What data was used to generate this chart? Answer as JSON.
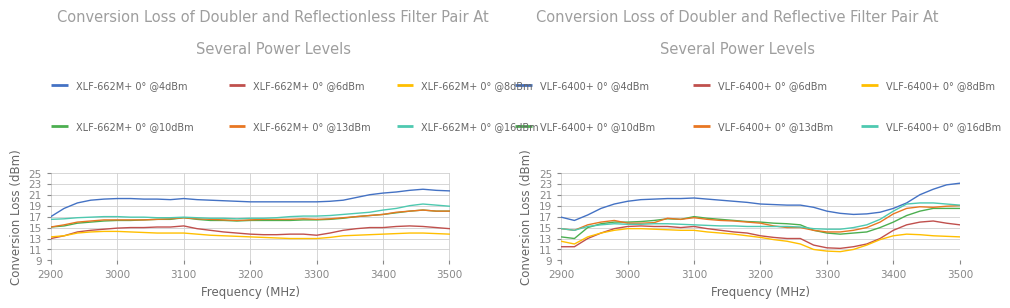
{
  "chart1": {
    "title_line1": "Conversion Loss of Doubler and Reflectionless Filter Pair At",
    "title_line2": "Several Power Levels",
    "xlabel": "Frequency (MHz)",
    "ylabel": "Conversion Loss (dBm)",
    "xlim": [
      2900,
      3500
    ],
    "ylim": [
      9,
      25
    ],
    "yticks": [
      9,
      11,
      13,
      15,
      17,
      19,
      21,
      23,
      25
    ],
    "xticks": [
      2900,
      3000,
      3100,
      3200,
      3300,
      3400,
      3500
    ],
    "series": [
      {
        "label": "XLF-662M+ 0° @4dBm",
        "color": "#4472C4",
        "x": [
          2900,
          2920,
          2940,
          2960,
          2980,
          3000,
          3020,
          3040,
          3060,
          3080,
          3100,
          3120,
          3140,
          3160,
          3180,
          3200,
          3220,
          3240,
          3260,
          3280,
          3300,
          3320,
          3340,
          3360,
          3380,
          3400,
          3420,
          3440,
          3460,
          3480,
          3500
        ],
        "y": [
          17.0,
          18.5,
          19.5,
          20.0,
          20.2,
          20.3,
          20.3,
          20.2,
          20.2,
          20.1,
          20.3,
          20.1,
          20.0,
          19.9,
          19.8,
          19.7,
          19.7,
          19.7,
          19.7,
          19.7,
          19.7,
          19.8,
          20.0,
          20.5,
          21.0,
          21.3,
          21.5,
          21.8,
          22.0,
          21.8,
          21.7
        ]
      },
      {
        "label": "XLF-662M+ 0° @6dBm",
        "color": "#C0504D",
        "x": [
          2900,
          2920,
          2940,
          2960,
          2980,
          3000,
          3020,
          3040,
          3060,
          3080,
          3100,
          3120,
          3140,
          3160,
          3180,
          3200,
          3220,
          3240,
          3260,
          3280,
          3300,
          3320,
          3340,
          3360,
          3380,
          3400,
          3420,
          3440,
          3460,
          3480,
          3500
        ],
        "y": [
          13.0,
          13.5,
          14.2,
          14.5,
          14.7,
          14.9,
          15.0,
          15.0,
          15.1,
          15.1,
          15.3,
          14.8,
          14.5,
          14.2,
          14.0,
          13.8,
          13.7,
          13.7,
          13.8,
          13.8,
          13.6,
          14.0,
          14.5,
          14.8,
          15.0,
          15.0,
          15.2,
          15.3,
          15.2,
          15.0,
          14.8
        ]
      },
      {
        "label": "XLF-662M+ 0° @8dBm",
        "color": "#FFBF00",
        "x": [
          2900,
          2920,
          2940,
          2960,
          2980,
          3000,
          3020,
          3040,
          3060,
          3080,
          3100,
          3120,
          3140,
          3160,
          3180,
          3200,
          3220,
          3240,
          3260,
          3280,
          3300,
          3320,
          3340,
          3360,
          3380,
          3400,
          3420,
          3440,
          3460,
          3480,
          3500
        ],
        "y": [
          13.3,
          13.5,
          14.0,
          14.2,
          14.3,
          14.3,
          14.2,
          14.1,
          14.0,
          14.0,
          14.0,
          13.8,
          13.6,
          13.5,
          13.4,
          13.3,
          13.2,
          13.1,
          13.0,
          13.0,
          13.0,
          13.2,
          13.5,
          13.6,
          13.7,
          13.8,
          13.9,
          14.0,
          14.0,
          13.9,
          13.8
        ]
      },
      {
        "label": "XLF-662M+ 0° @10dBm",
        "color": "#4CAF50",
        "x": [
          2900,
          2920,
          2940,
          2960,
          2980,
          3000,
          3020,
          3040,
          3060,
          3080,
          3100,
          3120,
          3140,
          3160,
          3180,
          3200,
          3220,
          3240,
          3260,
          3280,
          3300,
          3320,
          3340,
          3360,
          3380,
          3400,
          3420,
          3440,
          3460,
          3480,
          3500
        ],
        "y": [
          15.1,
          15.3,
          15.8,
          16.0,
          16.2,
          16.3,
          16.3,
          16.4,
          16.5,
          16.5,
          16.8,
          16.5,
          16.3,
          16.3,
          16.2,
          16.3,
          16.3,
          16.3,
          16.3,
          16.4,
          16.4,
          16.5,
          16.7,
          17.0,
          17.2,
          17.4,
          17.7,
          18.0,
          18.2,
          18.0,
          18.0
        ]
      },
      {
        "label": "XLF-662M+ 0° @13dBm",
        "color": "#E87722",
        "x": [
          2900,
          2920,
          2940,
          2960,
          2980,
          3000,
          3020,
          3040,
          3060,
          3080,
          3100,
          3120,
          3140,
          3160,
          3180,
          3200,
          3220,
          3240,
          3260,
          3280,
          3300,
          3320,
          3340,
          3360,
          3380,
          3400,
          3420,
          3440,
          3460,
          3480,
          3500
        ],
        "y": [
          15.1,
          15.5,
          16.0,
          16.2,
          16.4,
          16.4,
          16.4,
          16.4,
          16.5,
          16.6,
          16.8,
          16.6,
          16.5,
          16.4,
          16.3,
          16.4,
          16.5,
          16.5,
          16.5,
          16.6,
          16.5,
          16.6,
          16.8,
          17.0,
          17.2,
          17.4,
          17.8,
          18.0,
          18.2,
          18.0,
          18.0
        ]
      },
      {
        "label": "XLF-662M+ 0° @16dBm",
        "color": "#4EC9B0",
        "x": [
          2900,
          2920,
          2940,
          2960,
          2980,
          3000,
          3020,
          3040,
          3060,
          3080,
          3100,
          3120,
          3140,
          3160,
          3180,
          3200,
          3220,
          3240,
          3260,
          3280,
          3300,
          3320,
          3340,
          3360,
          3380,
          3400,
          3420,
          3440,
          3460,
          3480,
          3500
        ],
        "y": [
          16.5,
          16.6,
          16.8,
          16.9,
          17.0,
          17.0,
          16.9,
          16.9,
          16.8,
          16.8,
          16.9,
          16.8,
          16.7,
          16.7,
          16.6,
          16.7,
          16.7,
          16.8,
          17.0,
          17.1,
          17.1,
          17.2,
          17.4,
          17.6,
          17.8,
          18.2,
          18.5,
          19.0,
          19.3,
          19.1,
          18.9
        ]
      }
    ]
  },
  "chart2": {
    "title_line1": "Conversion Loss of Doubler and Reflective Filter Pair At",
    "title_line2": "Several Power Levels",
    "xlabel": "Frequency (MHz)",
    "ylabel": "Conversion Loss (dBm)",
    "xlim": [
      2900,
      3500
    ],
    "ylim": [
      9,
      25
    ],
    "yticks": [
      9,
      11,
      13,
      15,
      17,
      19,
      21,
      23,
      25
    ],
    "xticks": [
      2900,
      3000,
      3100,
      3200,
      3300,
      3400,
      3500
    ],
    "series": [
      {
        "label": "VLF-6400+ 0° @4dBm",
        "color": "#4472C4",
        "x": [
          2900,
          2920,
          2940,
          2960,
          2980,
          3000,
          3020,
          3040,
          3060,
          3080,
          3100,
          3120,
          3140,
          3160,
          3180,
          3200,
          3220,
          3240,
          3260,
          3280,
          3300,
          3320,
          3340,
          3360,
          3380,
          3400,
          3420,
          3440,
          3460,
          3480,
          3500
        ],
        "y": [
          16.9,
          16.3,
          17.3,
          18.5,
          19.3,
          19.8,
          20.1,
          20.2,
          20.3,
          20.3,
          20.4,
          20.2,
          20.0,
          19.8,
          19.6,
          19.3,
          19.2,
          19.1,
          19.1,
          18.7,
          18.0,
          17.6,
          17.4,
          17.5,
          17.8,
          18.5,
          19.5,
          21.0,
          22.0,
          22.8,
          23.1
        ]
      },
      {
        "label": "VLF-6400+ 0° @6dBm",
        "color": "#C0504D",
        "x": [
          2900,
          2920,
          2940,
          2960,
          2980,
          3000,
          3020,
          3040,
          3060,
          3080,
          3100,
          3120,
          3140,
          3160,
          3180,
          3200,
          3220,
          3240,
          3260,
          3280,
          3300,
          3320,
          3340,
          3360,
          3380,
          3400,
          3420,
          3440,
          3460,
          3480,
          3500
        ],
        "y": [
          11.5,
          11.5,
          13.0,
          14.0,
          14.8,
          15.2,
          15.3,
          15.2,
          15.2,
          15.0,
          15.2,
          14.8,
          14.5,
          14.2,
          14.0,
          13.5,
          13.2,
          13.0,
          13.0,
          11.8,
          11.3,
          11.2,
          11.5,
          12.0,
          13.0,
          14.5,
          15.5,
          16.0,
          16.2,
          15.8,
          15.5
        ]
      },
      {
        "label": "VLF-6400+ 0° @8dBm",
        "color": "#FFBF00",
        "x": [
          2900,
          2920,
          2940,
          2960,
          2980,
          3000,
          3020,
          3040,
          3060,
          3080,
          3100,
          3120,
          3140,
          3160,
          3180,
          3200,
          3220,
          3240,
          3260,
          3280,
          3300,
          3320,
          3340,
          3360,
          3380,
          3400,
          3420,
          3440,
          3460,
          3480,
          3500
        ],
        "y": [
          12.5,
          12.0,
          13.3,
          14.0,
          14.5,
          14.8,
          14.8,
          14.7,
          14.6,
          14.5,
          14.5,
          14.2,
          14.0,
          13.8,
          13.5,
          13.2,
          12.8,
          12.5,
          12.0,
          11.0,
          10.7,
          10.6,
          11.0,
          11.8,
          12.8,
          13.5,
          13.8,
          13.7,
          13.5,
          13.4,
          13.3
        ]
      },
      {
        "label": "VLF-6400+ 0° @10dBm",
        "color": "#4CAF50",
        "x": [
          2900,
          2920,
          2940,
          2960,
          2980,
          3000,
          3020,
          3040,
          3060,
          3080,
          3100,
          3120,
          3140,
          3160,
          3180,
          3200,
          3220,
          3240,
          3260,
          3280,
          3300,
          3320,
          3340,
          3360,
          3380,
          3400,
          3420,
          3440,
          3460,
          3480,
          3500
        ],
        "y": [
          13.3,
          13.0,
          15.0,
          15.7,
          16.0,
          16.0,
          16.1,
          16.3,
          16.6,
          16.5,
          17.0,
          16.7,
          16.5,
          16.3,
          16.1,
          16.0,
          15.8,
          15.7,
          15.5,
          14.5,
          14.0,
          13.8,
          14.0,
          14.2,
          15.0,
          16.0,
          17.2,
          18.0,
          18.5,
          18.5,
          18.5
        ]
      },
      {
        "label": "VLF-6400+ 0° @13dBm",
        "color": "#E87722",
        "x": [
          2900,
          2920,
          2940,
          2960,
          2980,
          3000,
          3020,
          3040,
          3060,
          3080,
          3100,
          3120,
          3140,
          3160,
          3180,
          3200,
          3220,
          3240,
          3260,
          3280,
          3300,
          3320,
          3340,
          3360,
          3380,
          3400,
          3420,
          3440,
          3460,
          3480,
          3500
        ],
        "y": [
          14.8,
          14.5,
          15.5,
          16.0,
          16.3,
          15.8,
          15.8,
          15.9,
          16.7,
          16.5,
          16.8,
          16.5,
          16.3,
          16.2,
          16.0,
          15.8,
          15.3,
          15.0,
          15.0,
          14.5,
          14.2,
          14.2,
          14.5,
          15.0,
          16.0,
          17.5,
          18.5,
          18.8,
          18.7,
          18.9,
          19.0
        ]
      },
      {
        "label": "VLF-6400+ 0° @16dBm",
        "color": "#4EC9B0",
        "x": [
          2900,
          2920,
          2940,
          2960,
          2980,
          3000,
          3020,
          3040,
          3060,
          3080,
          3100,
          3120,
          3140,
          3160,
          3180,
          3200,
          3220,
          3240,
          3260,
          3280,
          3300,
          3320,
          3340,
          3360,
          3380,
          3400,
          3420,
          3440,
          3460,
          3480,
          3500
        ],
        "y": [
          14.8,
          14.5,
          15.2,
          15.5,
          15.7,
          15.6,
          15.6,
          15.7,
          15.7,
          15.6,
          15.5,
          15.4,
          15.3,
          15.3,
          15.2,
          15.2,
          15.2,
          15.2,
          15.1,
          14.8,
          14.7,
          14.7,
          15.0,
          15.5,
          16.5,
          18.0,
          19.3,
          19.5,
          19.5,
          19.3,
          19.1
        ]
      }
    ]
  },
  "bg_color": "#ffffff",
  "grid_color": "#d0d0d0",
  "title_color": "#9e9e9e",
  "axis_label_color": "#666666",
  "tick_color": "#888888",
  "legend_fontsize": 7.0,
  "title_fontsize": 10.5,
  "axis_label_fontsize": 8.5,
  "tick_fontsize": 7.5
}
